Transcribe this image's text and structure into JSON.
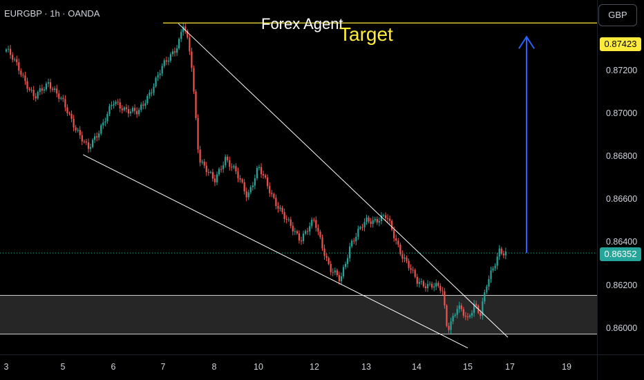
{
  "header": {
    "symbol": "EURGBP · 1h · OANDA",
    "title_left": "Forex Agent",
    "title_right": "Target",
    "currency_button": "GBP"
  },
  "price_tags": {
    "target": "0.87423",
    "current": "0.86352"
  },
  "colors": {
    "up": "#26a69a",
    "down": "#ef5350",
    "target_line": "#ffeb3b",
    "arrow": "#2962ff",
    "wedge": "#ffffff"
  },
  "chart_data": {
    "type": "candlestick",
    "symbol": "EURGBP",
    "timeframe": "1h",
    "source": "OANDA",
    "ylim": [
      0.8588,
      0.8753
    ],
    "y_ticks": [
      "0.87200",
      "0.87000",
      "0.86800",
      "0.86600",
      "0.86400",
      "0.86200",
      "0.86000"
    ],
    "x_ticks": [
      "3",
      "5",
      "6",
      "7",
      "8",
      "10",
      "12",
      "13",
      "14",
      "15",
      "17",
      "19"
    ],
    "target_price": 0.87423,
    "current_price": 0.86352,
    "support_zone": [
      0.85975,
      0.86155
    ],
    "wedge_upper": [
      [
        7.3,
        0.8742
      ],
      [
        16.9,
        0.8596
      ]
    ],
    "wedge_lower": [
      [
        5.4,
        0.8681
      ],
      [
        15.0,
        0.8591
      ]
    ],
    "price_path": [
      [
        3.0,
        0.873
      ],
      [
        3.5,
        0.872
      ],
      [
        4.0,
        0.8707
      ],
      [
        4.5,
        0.8715
      ],
      [
        5.0,
        0.8705
      ],
      [
        5.5,
        0.8683
      ],
      [
        6.0,
        0.8705
      ],
      [
        6.5,
        0.87
      ],
      [
        7.0,
        0.8722
      ],
      [
        7.3,
        0.8733
      ],
      [
        7.4,
        0.8742
      ],
      [
        7.55,
        0.8725
      ],
      [
        7.7,
        0.868
      ],
      [
        8.0,
        0.8668
      ],
      [
        8.5,
        0.868
      ],
      [
        9.0,
        0.8672
      ],
      [
        9.5,
        0.8662
      ],
      [
        10.0,
        0.8675
      ],
      [
        10.5,
        0.8662
      ],
      [
        11.0,
        0.865
      ],
      [
        11.5,
        0.8642
      ],
      [
        12.0,
        0.865
      ],
      [
        12.3,
        0.8628
      ],
      [
        12.5,
        0.8622
      ],
      [
        12.7,
        0.864
      ],
      [
        13.0,
        0.865
      ],
      [
        13.4,
        0.8652
      ],
      [
        13.7,
        0.8635
      ],
      [
        14.0,
        0.8622
      ],
      [
        14.3,
        0.862
      ],
      [
        14.5,
        0.8618
      ],
      [
        14.6,
        0.86
      ],
      [
        14.8,
        0.861
      ],
      [
        15.0,
        0.8604
      ],
      [
        15.3,
        0.8612
      ],
      [
        15.6,
        0.8607
      ],
      [
        15.9,
        0.862
      ],
      [
        16.2,
        0.8628
      ],
      [
        16.5,
        0.8637
      ],
      [
        16.8,
        0.8635
      ]
    ],
    "annotations": [
      "Forex Agent",
      "Target"
    ]
  }
}
